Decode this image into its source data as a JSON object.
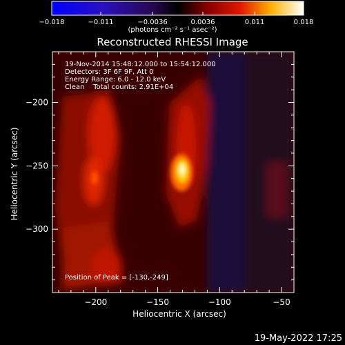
{
  "chart_data": {
    "type": "heatmap",
    "title": "Reconstructed RHESSI Image",
    "xlabel": "Heliocentric X (arcsec)",
    "ylabel": "Heliocentric Y (arcsec)",
    "xlim": [
      -235,
      -40
    ],
    "ylim": [
      -350,
      -160
    ],
    "x_ticks": [
      -200,
      -150,
      -100,
      -50
    ],
    "y_ticks": [
      -200,
      -250,
      -300
    ],
    "x_tick_labels": [
      "−200",
      "−150",
      "−100",
      "−50"
    ],
    "y_tick_labels": [
      "−200",
      "−250",
      "−300"
    ],
    "colorbar": {
      "range": [
        -0.018,
        0.018
      ],
      "ticks": [
        -0.018,
        -0.011,
        -0.0036,
        0.0036,
        0.011,
        0.018
      ],
      "tick_labels": [
        "−0.018",
        "−0.011",
        "−0.0036",
        "0.0036",
        "0.011",
        "0.018"
      ],
      "units": "(photons cm⁻² s⁻¹ asec⁻²)"
    },
    "sources": [
      {
        "x": -130,
        "y": -249,
        "value": 0.018
      },
      {
        "x": -200,
        "y": -255,
        "value": 0.0075
      },
      {
        "x": -193,
        "y": -210,
        "value": 0.006
      }
    ],
    "annotations": {
      "time_range": "19-Nov-2014 15:48:12.000 to 15:54:12.000",
      "detectors": "Detectors: 3F 6F 9F, Att 0",
      "energy": "Energy Range: 6.0 - 12.0 keV",
      "clean": "Clean    Total counts: 2.91E+04",
      "peak": "Position of Peak = [-130,-249]"
    },
    "footer": "19-May-2022 17:25"
  }
}
